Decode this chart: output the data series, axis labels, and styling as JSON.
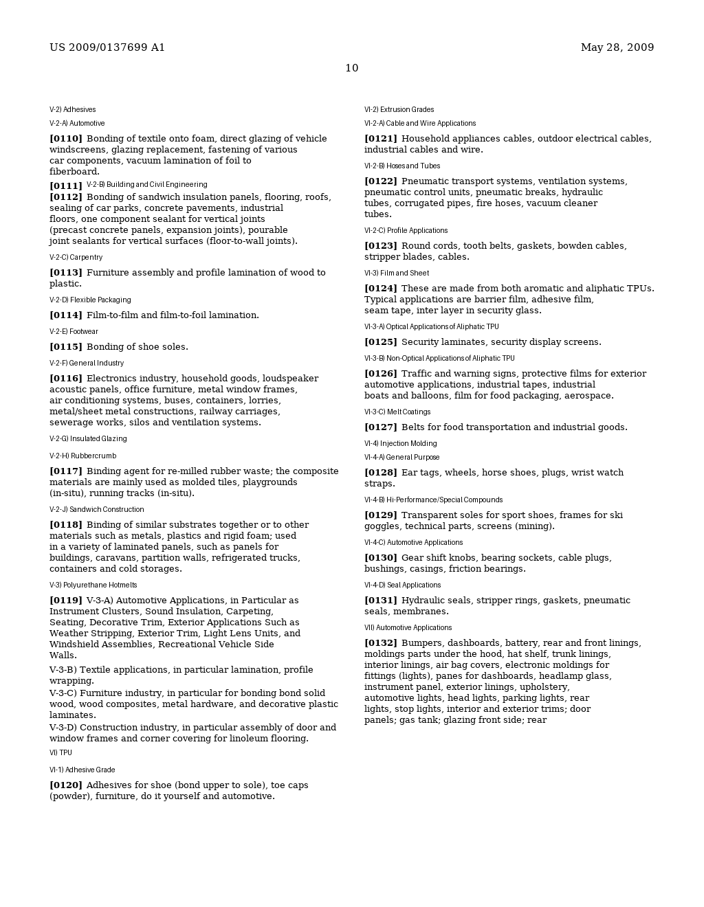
{
  "header_left": "US 2009/0137699 A1",
  "header_right": "May 28, 2009",
  "page_number": "10",
  "bg": "#ffffff",
  "fg": "#000000",
  "left_column": [
    {
      "t": "sec",
      "text": "V-2) Adhesives"
    },
    {
      "t": "sub",
      "text": "V-2-A) Automotive"
    },
    {
      "t": "para",
      "num": "[0110]",
      "text": "Bonding of textile onto foam, direct glazing of vehicle windscreens, glazing replacement, fastening of various car components, vacuum lamination of foil to fiberboard."
    },
    {
      "t": "inline",
      "num": "[0111]",
      "text": "V-2-B) Building and Civil Engineering"
    },
    {
      "t": "para",
      "num": "[0112]",
      "text": "Bonding of sandwich insulation panels, flooring, roofs, sealing of car parks, concrete pavements, industrial floors, one component sealant for vertical joints (precast concrete panels, expansion joints), pourable joint sealants for vertical surfaces (floor-to-wall joints)."
    },
    {
      "t": "sec",
      "text": "V-2-C) Carpentry"
    },
    {
      "t": "para",
      "num": "[0113]",
      "text": "Furniture assembly and profile lamination of wood to plastic."
    },
    {
      "t": "sec",
      "text": "V-2-D) Flexible Packaging"
    },
    {
      "t": "para",
      "num": "[0114]",
      "text": "Film-to-film and film-to-foil lamination."
    },
    {
      "t": "sec",
      "text": "V-2-E) Footwear"
    },
    {
      "t": "para",
      "num": "[0115]",
      "text": "Bonding of shoe soles."
    },
    {
      "t": "sec",
      "text": "V-2-F) General Industry"
    },
    {
      "t": "para",
      "num": "[0116]",
      "text": "Electronics industry, household goods, loudspeaker acoustic panels, office furniture, metal window frames, air conditioning systems, buses, containers, lorries, metal/sheet metal constructions, railway carriages, sewerage works, silos and ventilation systems."
    },
    {
      "t": "sec",
      "text": "V-2-G) Insulated Glazing"
    },
    {
      "t": "sec",
      "text": "V-2-H) Rubbercrumb"
    },
    {
      "t": "para",
      "num": "[0117]",
      "text": "Binding agent for re-milled rubber waste; the composite materials are mainly used as molded tiles, playgrounds (in-situ), running tracks (in-situ)."
    },
    {
      "t": "sec",
      "text": "V-2-J) Sandwich Construction"
    },
    {
      "t": "para",
      "num": "[0118]",
      "text": "Binding of similar substrates together or to other materials such as metals, plastics and rigid foam; used in a variety of laminated panels, such as panels for buildings, caravans, partition walls, refrigerated trucks, containers and cold storages."
    },
    {
      "t": "sec",
      "text": "V-3) Polyurethane Hotmelts"
    },
    {
      "t": "para",
      "num": "[0119]",
      "text": "V-3-A) Automotive Applications, in Particular as Instrument Clusters, Sound Insulation, Carpeting, Seating, Decorative Trim, Exterior Applications Such as Weather Stripping, Exterior Trim, Light Lens Units, and Windshield Assemblies, Recreational Vehicle Side Walls."
    },
    {
      "t": "plain",
      "text": "V-3-B) Textile applications, in particular lamination, profile wrapping."
    },
    {
      "t": "plain",
      "text": "V-3-C) Furniture industry, in particular for bonding bond solid wood, wood composites, metal hardware, and decorative plastic laminates."
    },
    {
      "t": "plain",
      "text": "V-3-D) Construction industry, in particular assembly of door and window frames and corner covering for linoleum flooring."
    },
    {
      "t": "sec",
      "text": "VI) TPU"
    },
    {
      "t": "sec",
      "text": "VI-1) Adhesive Grade"
    },
    {
      "t": "para",
      "num": "[0120]",
      "text": "Adhesives for shoe (bond upper to sole), toe caps (powder), furniture, do it yourself and automotive."
    }
  ],
  "right_column": [
    {
      "t": "sec",
      "text": "VI-2) Extrusion Grades"
    },
    {
      "t": "sub",
      "text": "VI-2-A) Cable and Wire Applications"
    },
    {
      "t": "para",
      "num": "[0121]",
      "text": "Household appliances cables, outdoor electrical cables, industrial cables and wire."
    },
    {
      "t": "sec",
      "text": "VI-2-B) Hoses and Tubes"
    },
    {
      "t": "para",
      "num": "[0122]",
      "text": "Pneumatic transport systems, ventilation systems, pneumatic control units, pneumatic breaks, hydraulic tubes, corrugated pipes, fire hoses, vacuum cleaner tubes."
    },
    {
      "t": "sec",
      "text": "VI-2-C) Profile Applications"
    },
    {
      "t": "para",
      "num": "[0123]",
      "text": "Round cords, tooth belts, gaskets, bowden cables, stripper blades, cables."
    },
    {
      "t": "sec",
      "text": "VI-3) Film and Sheet"
    },
    {
      "t": "para",
      "num": "[0124]",
      "text": "These are made from both aromatic and aliphatic TPUs. Typical applications are barrier film, adhesive film, seam tape, inter layer in security glass."
    },
    {
      "t": "sec",
      "text": "VI-3-A) Optical Applications of Aliphatic TPU"
    },
    {
      "t": "para",
      "num": "[0125]",
      "text": "Security laminates, security display screens."
    },
    {
      "t": "sec",
      "text": "VI-3-B) Non-Optical Applications of Aliphatic TPU"
    },
    {
      "t": "para",
      "num": "[0126]",
      "text": "Traffic and warning signs, protective films for exterior automotive applications, industrial tapes, industrial boats and balloons, film for food packaging, aerospace."
    },
    {
      "t": "sec",
      "text": "VI-3-C) Melt Coatings"
    },
    {
      "t": "para",
      "num": "[0127]",
      "text": "Belts for food transportation and industrial goods."
    },
    {
      "t": "sec",
      "text": "VI-4) Injection Molding"
    },
    {
      "t": "sub",
      "text": "VI-4-A) General Purpose"
    },
    {
      "t": "para",
      "num": "[0128]",
      "text": "Ear tags, wheels, horse shoes, plugs, wrist watch straps."
    },
    {
      "t": "sec",
      "text": "VI-4-B) Hi-Performance/Special Compounds"
    },
    {
      "t": "para",
      "num": "[0129]",
      "text": "Transparent soles for sport shoes, frames for ski goggles, technical parts, screens (mining)."
    },
    {
      "t": "sec",
      "text": "VI-4-C) Automotive Applications"
    },
    {
      "t": "para",
      "num": "[0130]",
      "text": "Gear shift knobs, bearing sockets, cable plugs, bushings, casings, friction bearings."
    },
    {
      "t": "sec",
      "text": "VI-4-D) Seal Applications"
    },
    {
      "t": "para",
      "num": "[0131]",
      "text": "Hydraulic seals, stripper rings, gaskets, pneumatic seals, membranes."
    },
    {
      "t": "sec",
      "text": "VII) Automotive Applications"
    },
    {
      "t": "para",
      "num": "[0132]",
      "text": "Bumpers, dashboards, battery, rear and front linings, moldings parts under the hood, hat shelf, trunk linings, interior linings, air bag covers, electronic moldings for fittings (lights), panes for dashboards, headlamp glass, instrument panel, exterior linings, upholstery, automotive lights, head lights, parking lights, rear lights, stop lights, interior and exterior trims; door panels; gas tank; glazing front side; rear"
    }
  ]
}
